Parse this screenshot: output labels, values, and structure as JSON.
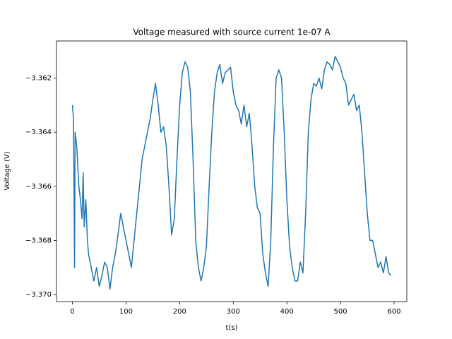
{
  "chart_data": {
    "type": "line",
    "title": "Voltage measured with source current 1e-07 A",
    "x_label": "t(s)",
    "y_label": "Voltage (V)",
    "color": "#1f77b4",
    "grid": false,
    "xlim": [
      -29.7,
      623.7
    ],
    "ylim": [
      -3.37026,
      -3.36063
    ],
    "xticks": [
      0,
      100,
      200,
      300,
      400,
      500,
      600
    ],
    "yticks": [
      {
        "value": -3.37,
        "label": "−3.370"
      },
      {
        "value": -3.368,
        "label": "−3.368"
      },
      {
        "value": -3.366,
        "label": "−3.366"
      },
      {
        "value": -3.364,
        "label": "−3.364"
      },
      {
        "value": -3.362,
        "label": "−3.362"
      }
    ],
    "x": [
      0,
      2,
      4,
      5,
      8,
      12,
      15,
      18,
      20,
      22,
      25,
      28,
      30,
      35,
      40,
      45,
      50,
      55,
      60,
      65,
      70,
      75,
      80,
      85,
      90,
      95,
      100,
      105,
      110,
      115,
      120,
      125,
      130,
      135,
      140,
      145,
      150,
      155,
      160,
      165,
      170,
      175,
      180,
      185,
      190,
      195,
      200,
      205,
      210,
      215,
      220,
      225,
      230,
      235,
      240,
      245,
      250,
      255,
      260,
      265,
      270,
      275,
      280,
      285,
      290,
      295,
      300,
      305,
      310,
      315,
      320,
      325,
      330,
      335,
      340,
      345,
      350,
      355,
      360,
      365,
      370,
      375,
      380,
      385,
      390,
      395,
      400,
      405,
      410,
      415,
      420,
      425,
      430,
      435,
      440,
      445,
      450,
      455,
      460,
      465,
      470,
      475,
      480,
      485,
      490,
      495,
      500,
      505,
      510,
      515,
      520,
      525,
      530,
      535,
      540,
      545,
      550,
      555,
      560,
      565,
      570,
      575,
      580,
      585,
      590,
      594
    ],
    "values": [
      -3.363,
      -3.3635,
      -3.369,
      -3.364,
      -3.3645,
      -3.366,
      -3.3665,
      -3.3672,
      -3.3655,
      -3.3675,
      -3.3665,
      -3.368,
      -3.3685,
      -3.369,
      -3.3695,
      -3.369,
      -3.3697,
      -3.3693,
      -3.3688,
      -3.369,
      -3.3698,
      -3.369,
      -3.3685,
      -3.3678,
      -3.367,
      -3.3675,
      -3.368,
      -3.3685,
      -3.369,
      -3.368,
      -3.367,
      -3.366,
      -3.365,
      -3.3645,
      -3.364,
      -3.3635,
      -3.3628,
      -3.3622,
      -3.363,
      -3.364,
      -3.3638,
      -3.3645,
      -3.366,
      -3.3678,
      -3.3672,
      -3.365,
      -3.363,
      -3.3618,
      -3.3614,
      -3.3616,
      -3.3625,
      -3.365,
      -3.368,
      -3.369,
      -3.3695,
      -3.369,
      -3.3682,
      -3.366,
      -3.364,
      -3.3625,
      -3.3618,
      -3.3615,
      -3.3622,
      -3.3618,
      -3.3617,
      -3.3616,
      -3.3625,
      -3.363,
      -3.3632,
      -3.3637,
      -3.363,
      -3.3638,
      -3.3633,
      -3.3645,
      -3.366,
      -3.3668,
      -3.367,
      -3.3685,
      -3.3692,
      -3.3697,
      -3.368,
      -3.3645,
      -3.362,
      -3.3617,
      -3.362,
      -3.364,
      -3.3665,
      -3.3682,
      -3.369,
      -3.3695,
      -3.3695,
      -3.3688,
      -3.3692,
      -3.367,
      -3.364,
      -3.3628,
      -3.3622,
      -3.3623,
      -3.362,
      -3.3624,
      -3.3617,
      -3.3614,
      -3.3615,
      -3.3617,
      -3.3612,
      -3.3614,
      -3.3616,
      -3.362,
      -3.3622,
      -3.363,
      -3.3628,
      -3.3626,
      -3.3632,
      -3.363,
      -3.364,
      -3.3655,
      -3.367,
      -3.368,
      -3.368,
      -3.3685,
      -3.369,
      -3.3688,
      -3.3692,
      -3.3686,
      -3.3692,
      -3.3693
    ]
  }
}
